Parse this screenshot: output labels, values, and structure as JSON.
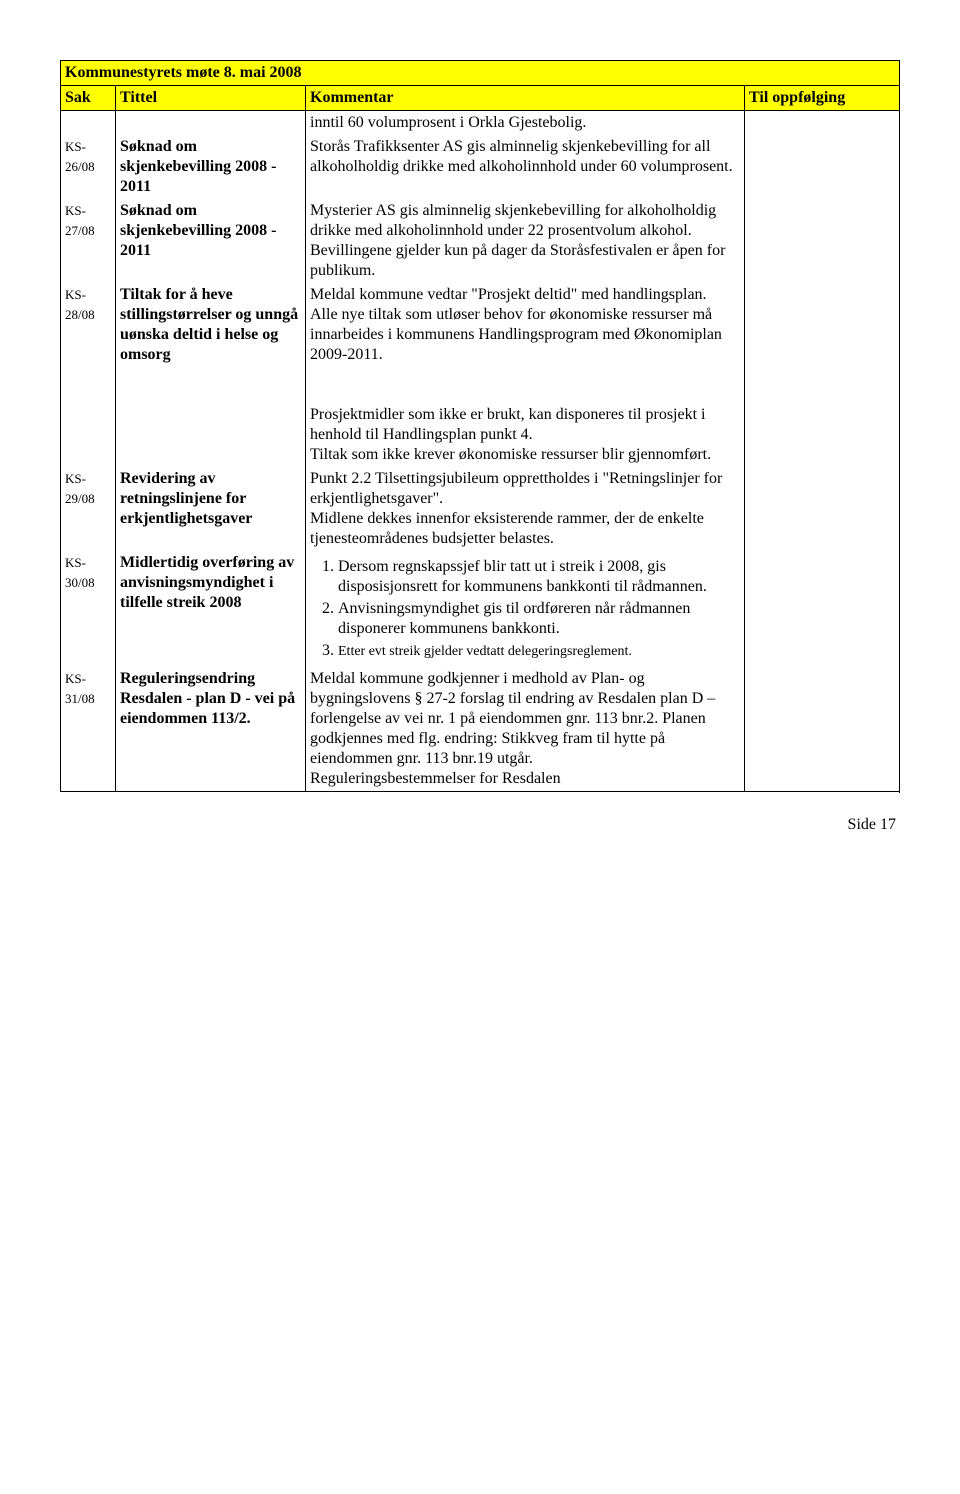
{
  "title": "Kommunestyrets møte 8. mai 2008",
  "headers": {
    "sak": "Sak",
    "tittel": "Tittel",
    "kommentar": "Kommentar",
    "oppfolging": "Til oppfølging"
  },
  "rows": [
    {
      "sak": "",
      "tittel": "",
      "kommentar_top": "inntil 60 volumprosent i Orkla Gjestebolig."
    },
    {
      "sak": "KS-26/08",
      "tittel": "Søknad om skjenkebevilling 2008 - 2011",
      "kommentar": "Storås Trafikksenter AS gis alminnelig skjenkebevilling for all alkoholholdig drikke med alkoholinnhold under 60 volumprosent."
    },
    {
      "sak": "KS-27/08",
      "tittel": "Søknad om skjenkebevilling 2008 - 2011",
      "kommentar": "Mysterier AS gis alminnelig skjenkebevilling for alkoholholdig drikke med alkoholinnhold under 22 prosentvolum alkohol.\nBevillingene gjelder kun på dager da Storåsfestivalen er åpen for publikum."
    },
    {
      "sak": "KS-28/08",
      "tittel": "Tiltak for å heve stillingstørrelser og unngå uønska deltid i helse og omsorg",
      "kommentar_p1": "Meldal kommune vedtar \"Prosjekt deltid\" med handlingsplan.\nAlle nye tiltak som utløser behov for økonomiske ressurser må innarbeides i kommunens Handlingsprogram med Økonomiplan 2009-2011.",
      "kommentar_p2": "Prosjektmidler som ikke er brukt, kan disponeres til prosjekt i henhold til Handlingsplan punkt 4.\nTiltak som ikke krever økonomiske ressurser blir gjennomført."
    },
    {
      "sak": "KS-29/08",
      "tittel": "Revidering av retningslinjene for erkjentlighetsgaver",
      "kommentar": "Punkt 2.2 Tilsettingsjubileum opprettholdes i \"Retningslinjer for erkjentlighetsgaver\".\nMidlene dekkes innenfor eksisterende rammer, der de enkelte tjenesteområdenes budsjetter belastes."
    },
    {
      "sak": "KS-30/08",
      "tittel": "Midlertidig overføring av anvisningsmyndighet i tilfelle streik 2008",
      "kom_list": [
        "Dersom regnskapssjef blir tatt ut i streik i 2008, gis disposisjonsrett for kommunens bankkonti til rådmannen.",
        "Anvisningsmyndighet gis til ordføreren når rådmannen disponerer kommunens bankkonti.",
        "Etter evt streik gjelder vedtatt delegeringsreglement."
      ]
    },
    {
      "sak": "KS-31/08",
      "tittel": "Reguleringsendring Resdalen - plan D - vei på eiendommen 113/2.",
      "kommentar": "Meldal kommune godkjenner i medhold av Plan- og bygningslovens § 27-2 forslag til endring av Resdalen plan D – forlengelse av vei nr. 1 på eiendommen gnr. 113 bnr.2. Planen godkjennes med flg. endring: Stikkveg fram til hytte på eiendommen gnr. 113 bnr.19 utgår.\nReguleringsbestemmelser for Resdalen"
    }
  ],
  "footer": "Side 17",
  "colors": {
    "header_bg": "#ffff00",
    "border": "#000000",
    "text": "#000000",
    "background": "#ffffff"
  }
}
